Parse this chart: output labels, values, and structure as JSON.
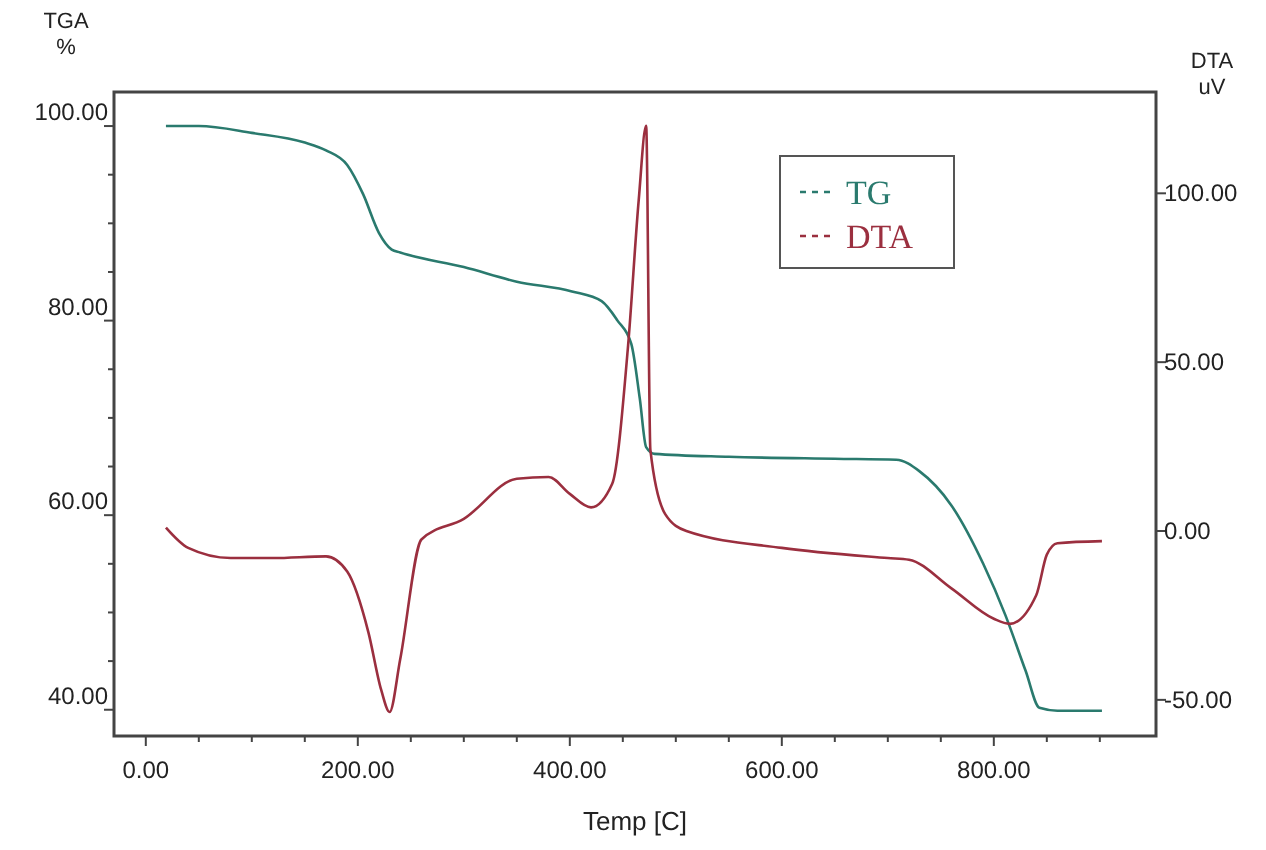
{
  "chart_data": {
    "type": "line",
    "xlabel": "Temp [C]",
    "ylabel": "TGA\n%",
    "y2label": "DTA\nuV",
    "xlim": [
      -30,
      953
    ],
    "ylim": [
      37.3,
      103.5
    ],
    "y2lim": [
      -60.7,
      130
    ],
    "xticks": [
      {
        "value": 0,
        "label": "0.00"
      },
      {
        "value": 50,
        "label": null
      },
      {
        "value": 100,
        "label": null
      },
      {
        "value": 150,
        "label": null
      },
      {
        "value": 200,
        "label": "200.00"
      },
      {
        "value": 250,
        "label": null
      },
      {
        "value": 300,
        "label": null
      },
      {
        "value": 350,
        "label": null
      },
      {
        "value": 400,
        "label": "400.00"
      },
      {
        "value": 450,
        "label": null
      },
      {
        "value": 500,
        "label": null
      },
      {
        "value": 550,
        "label": null
      },
      {
        "value": 600,
        "label": "600.00"
      },
      {
        "value": 650,
        "label": null
      },
      {
        "value": 700,
        "label": null
      },
      {
        "value": 750,
        "label": null
      },
      {
        "value": 800,
        "label": "800.00"
      },
      {
        "value": 850,
        "label": null
      },
      {
        "value": 900,
        "label": null
      }
    ],
    "yticks": [
      {
        "value": 40,
        "label": "40.00"
      },
      {
        "value": 45,
        "label": null
      },
      {
        "value": 50,
        "label": null
      },
      {
        "value": 55,
        "label": null
      },
      {
        "value": 60,
        "label": "60.00"
      },
      {
        "value": 65,
        "label": null
      },
      {
        "value": 70,
        "label": null
      },
      {
        "value": 75,
        "label": null
      },
      {
        "value": 80,
        "label": "80.00"
      },
      {
        "value": 85,
        "label": null
      },
      {
        "value": 90,
        "label": null
      },
      {
        "value": 95,
        "label": null
      },
      {
        "value": 100,
        "label": "100.00"
      }
    ],
    "y2ticks": [
      {
        "value": -50,
        "label": "-50.00"
      },
      {
        "value": 0,
        "label": "0.00"
      },
      {
        "value": 50,
        "label": "50.00"
      },
      {
        "value": 100,
        "label": "100.00"
      }
    ],
    "legend": "top right",
    "grid": false,
    "marker": "none",
    "line_style": "solid",
    "series": [
      {
        "name": "TG",
        "color": "#2a7a6e",
        "x": [
          19,
          50,
          100,
          150,
          170,
          190,
          205,
          220,
          232,
          240,
          300,
          350,
          402,
          430,
          445,
          458,
          466,
          472,
          480,
          550,
          650,
          708,
          730,
          760,
          790,
          811,
          830,
          843,
          860,
          902
        ],
        "values": [
          100,
          100,
          99.3,
          98.3,
          97.5,
          96,
          93,
          89,
          87.3,
          87,
          85.5,
          84,
          83,
          82,
          80,
          77.6,
          72,
          67,
          66.3,
          66,
          65.8,
          65.7,
          64.5,
          61,
          55,
          49.7,
          44,
          40.2,
          39.9,
          39.9
        ]
      },
      {
        "name": "DTA",
        "color": "#9b2f3f",
        "axis": "y2",
        "x": [
          19,
          40,
          80,
          120,
          170,
          190,
          210,
          222,
          230,
          240,
          260,
          300,
          350,
          380,
          400,
          420,
          440,
          455,
          465,
          472,
          476,
          490,
          510,
          600,
          700,
          720,
          760,
          800,
          815,
          840,
          850,
          860,
          902
        ],
        "values": [
          1,
          -5,
          -8,
          -8,
          -7.5,
          -12,
          -30,
          -47,
          -53.6,
          -38,
          -2.5,
          3.6,
          15.5,
          16,
          11,
          7,
          14,
          55,
          98,
          120,
          24,
          5,
          0,
          -5,
          -8,
          -8.5,
          -17,
          -26,
          -27.5,
          -19,
          -7,
          -3.6,
          -3
        ]
      }
    ]
  }
}
